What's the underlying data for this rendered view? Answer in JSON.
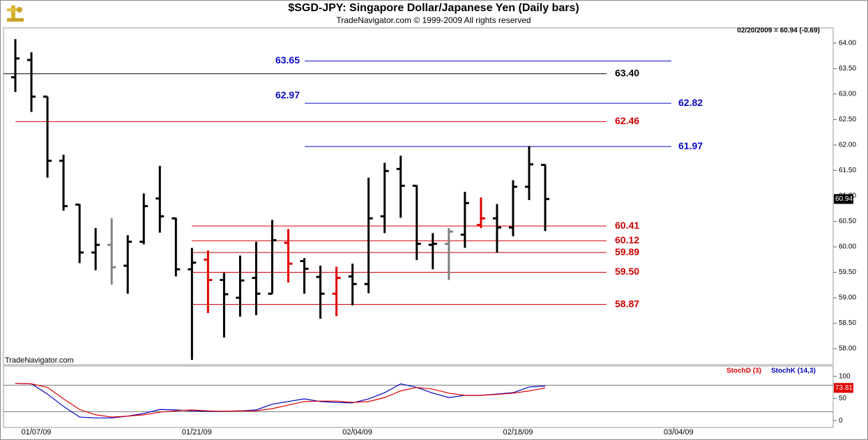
{
  "chart_data": [
    {
      "type": "ohlc",
      "title": "$SGD-JPY:  Singapore Dollar/Japanese Yen  (Daily bars)",
      "subtitle": "TradeNavigator.com © 1999-2009 All rights reserved",
      "header": "02/20/2009 = 60.94 (-0.69)",
      "watermark": "TradeNavigator.com",
      "categories": [
        null,
        "01/07/09",
        null,
        null,
        null,
        null,
        null,
        null,
        null,
        null,
        null,
        "01/21/09",
        null,
        null,
        null,
        null,
        null,
        null,
        null,
        null,
        null,
        "02/04/09",
        null,
        null,
        null,
        null,
        null,
        null,
        null,
        null,
        null,
        "02/18/09",
        null,
        null,
        null,
        null,
        null,
        null,
        null,
        null,
        null,
        "03/04/09"
      ],
      "open": [
        63.33,
        63.67,
        62.95,
        61.69,
        60.83,
        59.89,
        60.04,
        59.63,
        60.1,
        60.95,
        60.56,
        59.56,
        59.75,
        59.35,
        59.0,
        59.39,
        59.08,
        60.08,
        59.72,
        59.41,
        59.08,
        59.42,
        59.27,
        60.6,
        61.53,
        61.2,
        60.04,
        60.06,
        60.24,
        60.43,
        60.56,
        60.38,
        61.18,
        61.61,
        null,
        null,
        null,
        null,
        null,
        null,
        null,
        null
      ],
      "high": [
        64.08,
        63.82,
        62.95,
        61.81,
        60.84,
        60.37,
        60.56,
        60.23,
        61.05,
        61.59,
        60.57,
        59.98,
        59.93,
        59.49,
        59.83,
        60.1,
        60.53,
        60.35,
        59.78,
        59.63,
        59.61,
        59.67,
        61.36,
        61.65,
        61.79,
        61.21,
        60.27,
        60.37,
        61.08,
        60.97,
        60.84,
        61.31,
        61.98,
        61.62,
        null,
        null,
        null,
        null,
        null,
        null,
        null,
        null
      ],
      "low": [
        63.04,
        62.65,
        61.36,
        60.71,
        59.68,
        59.54,
        59.26,
        59.08,
        60.05,
        60.28,
        59.42,
        57.78,
        58.7,
        58.22,
        58.63,
        58.66,
        59.08,
        59.3,
        59.08,
        58.59,
        58.64,
        58.85,
        59.09,
        60.27,
        60.57,
        59.74,
        59.56,
        59.35,
        59.98,
        60.37,
        59.89,
        60.21,
        60.92,
        60.31,
        null,
        null,
        null,
        null,
        null,
        null,
        null,
        null
      ],
      "close": [
        63.7,
        62.95,
        61.69,
        60.8,
        59.89,
        60.04,
        59.6,
        60.1,
        60.8,
        60.6,
        59.56,
        59.69,
        59.35,
        59.07,
        59.34,
        59.08,
        60.13,
        59.67,
        59.57,
        59.08,
        59.39,
        59.27,
        60.56,
        61.49,
        61.2,
        60.06,
        60.06,
        60.3,
        60.86,
        60.56,
        60.38,
        61.18,
        61.62,
        60.94,
        null,
        null,
        null,
        null,
        null,
        null,
        null,
        null
      ],
      "colors": [
        "#000000",
        "#000000",
        "#000000",
        "#000000",
        "#000000",
        "#000000",
        "#808080",
        "#000000",
        "#000000",
        "#000000",
        "#000000",
        "#000000",
        "#e00000",
        "#000000",
        "#000000",
        "#000000",
        "#000000",
        "#e00000",
        "#000000",
        "#000000",
        "#e00000",
        "#000000",
        "#000000",
        "#000000",
        "#000000",
        "#000000",
        "#000000",
        "#808080",
        "#000000",
        "#e00000",
        "#000000",
        "#000000",
        "#000000",
        "#000000",
        null,
        null,
        null,
        null,
        null,
        null,
        null,
        null
      ],
      "ylim": [
        57.7,
        64.3
      ],
      "yticks": [
        {
          "value": 58,
          "label": "58.00"
        },
        {
          "value": 58.5,
          "label": "58.50"
        },
        {
          "value": 59,
          "label": "59.00"
        },
        {
          "value": 59.5,
          "label": "59.50"
        },
        {
          "value": 60,
          "label": "60.00"
        },
        {
          "value": 60.5,
          "label": "60.50"
        },
        {
          "value": 61,
          "label": "61.00"
        },
        {
          "value": 61.5,
          "label": "61.50"
        },
        {
          "value": 62,
          "label": "62.00"
        },
        {
          "value": 62.5,
          "label": "62.50"
        },
        {
          "value": 63,
          "label": "63.00"
        },
        {
          "value": 63.5,
          "label": "63.50"
        },
        {
          "value": 64,
          "label": "64.00"
        }
      ],
      "levels": [
        {
          "value": 63.65,
          "label": "63.65",
          "color": "#0a0ac8"
        },
        {
          "value": 63.4,
          "label": "63.40",
          "color": "#000000"
        },
        {
          "value": 62.82,
          "label": "62.82",
          "color": "#0a0ac8"
        },
        {
          "value": 62.46,
          "label": "62.46",
          "color": "#d00000"
        },
        {
          "value": 61.97,
          "label": "61.97",
          "color": "#0a0ac8"
        },
        {
          "value": 60.41,
          "label": "60.41",
          "color": "#d00000"
        },
        {
          "value": 60.12,
          "label": "60.12",
          "color": "#d00000"
        },
        {
          "value": 59.89,
          "label": "59.89",
          "color": "#d00000"
        },
        {
          "value": 59.5,
          "label": "59.50",
          "color": "#d00000"
        },
        {
          "value": 58.87,
          "label": "58.87",
          "color": "#d00000"
        }
      ],
      "annotations": [
        {
          "value": 62.97,
          "label": "62.97",
          "color": "#0a0ac8"
        }
      ],
      "last_price": {
        "value": 60.94,
        "label": "60.94"
      }
    },
    {
      "type": "line",
      "series": [
        {
          "name": "StochD (3)",
          "color": "#e00000",
          "values": [
            84,
            83,
            75,
            49,
            25,
            13,
            8,
            10,
            13,
            19,
            22,
            24,
            22,
            21,
            22,
            22,
            27,
            35,
            43,
            44,
            44,
            41,
            43,
            52,
            67,
            75,
            71,
            62,
            57,
            57,
            59,
            62,
            67,
            73.81
          ],
          "value_labels": [
            null,
            null,
            null,
            null,
            null,
            null,
            null,
            null,
            null,
            null,
            null,
            null,
            null,
            null,
            null,
            null,
            null,
            null,
            null,
            null,
            null,
            null,
            null,
            null,
            null,
            null,
            null,
            null,
            null,
            null,
            null,
            null,
            null,
            "73.81"
          ]
        },
        {
          "name": "StochK (14,3)",
          "color": "#0000c0",
          "values": [
            84,
            83,
            60,
            32,
            8,
            6,
            6,
            10,
            16,
            25,
            24,
            22,
            21,
            21,
            22,
            24,
            37,
            43,
            49,
            43,
            41,
            40,
            49,
            63,
            83,
            75,
            62,
            52,
            57,
            57,
            60,
            63,
            76,
            78
          ]
        }
      ],
      "ylim": [
        -14,
        120
      ],
      "yticks": [
        0,
        50,
        100
      ],
      "ref_lines": [
        20,
        80
      ]
    }
  ]
}
